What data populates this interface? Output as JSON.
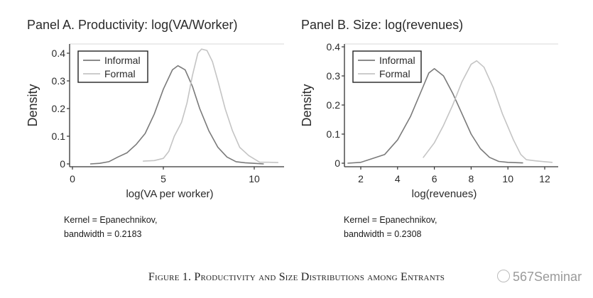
{
  "chart_data": [
    {
      "type": "line",
      "title": "Panel A. Productivity: log(VA/Worker)",
      "xlabel": "log(VA per worker)",
      "ylabel": "Density",
      "xlim": [
        -0.1,
        11.5
      ],
      "ylim": [
        0,
        0.4
      ],
      "xticks": [
        0,
        5,
        10
      ],
      "xtick_labels": [
        "0",
        "5",
        "10"
      ],
      "yticks": [
        0,
        0.1,
        0.2,
        0.3,
        0.4
      ],
      "ytick_labels": [
        "0",
        "0.1",
        "0.2",
        "0.3",
        "0.4"
      ],
      "legend": [
        "Informal",
        "Formal"
      ],
      "legend_position": "top-left",
      "grid": false,
      "note": [
        "Kernel = Epanechnikov,",
        "bandwidth = 0.2183"
      ],
      "series": [
        {
          "name": "Informal",
          "color": "#7a7a7a",
          "x": [
            1.0,
            1.5,
            2.0,
            2.5,
            3.0,
            3.5,
            4.0,
            4.5,
            5.0,
            5.5,
            5.8,
            6.2,
            6.6,
            7.0,
            7.5,
            8.0,
            8.5,
            9.0,
            9.5,
            10.0,
            10.5
          ],
          "y": [
            0.0,
            0.002,
            0.008,
            0.025,
            0.04,
            0.07,
            0.11,
            0.18,
            0.27,
            0.34,
            0.355,
            0.34,
            0.28,
            0.2,
            0.12,
            0.06,
            0.025,
            0.008,
            0.004,
            0.002,
            0.0
          ]
        },
        {
          "name": "Formal",
          "color": "#c4c4c4",
          "x": [
            3.9,
            4.5,
            5.0,
            5.3,
            5.6,
            6.0,
            6.3,
            6.6,
            6.9,
            7.1,
            7.4,
            7.7,
            8.0,
            8.4,
            8.8,
            9.2,
            9.7,
            10.3,
            10.8,
            11.3
          ],
          "y": [
            0.01,
            0.012,
            0.02,
            0.045,
            0.1,
            0.15,
            0.22,
            0.32,
            0.4,
            0.415,
            0.41,
            0.37,
            0.3,
            0.2,
            0.12,
            0.06,
            0.03,
            0.006,
            0.006,
            0.005
          ]
        }
      ]
    },
    {
      "type": "line",
      "title": "Panel B. Size: log(revenues)",
      "xlabel": "log(revenues)",
      "ylabel": "Density",
      "xlim": [
        1.1,
        12.7
      ],
      "ylim": [
        0,
        0.4
      ],
      "xticks": [
        2,
        4,
        6,
        8,
        10,
        12
      ],
      "xtick_labels": [
        "2",
        "4",
        "6",
        "8",
        "10",
        "12"
      ],
      "yticks": [
        0,
        0.1,
        0.2,
        0.3,
        0.4
      ],
      "ytick_labels": [
        "0",
        "0.1",
        "0.2",
        "0.3",
        "0.4"
      ],
      "legend": [
        "Informal",
        "Formal"
      ],
      "legend_position": "top-left",
      "grid": false,
      "note": [
        "Kernel = Epanechnikov,",
        "bandwidth = 0.2308"
      ],
      "series": [
        {
          "name": "Informal",
          "color": "#7a7a7a",
          "x": [
            1.3,
            2.0,
            2.6,
            3.3,
            4.0,
            4.7,
            5.3,
            5.7,
            6.0,
            6.5,
            7.0,
            7.5,
            8.0,
            8.5,
            9.0,
            9.5,
            10.0,
            10.8
          ],
          "y": [
            0.0,
            0.003,
            0.015,
            0.03,
            0.08,
            0.16,
            0.25,
            0.31,
            0.325,
            0.3,
            0.24,
            0.17,
            0.1,
            0.05,
            0.02,
            0.006,
            0.003,
            0.001
          ]
        },
        {
          "name": "Formal",
          "color": "#c4c4c4",
          "x": [
            5.4,
            6.0,
            6.5,
            7.0,
            7.5,
            8.0,
            8.3,
            8.7,
            9.2,
            9.7,
            10.3,
            10.7,
            11.0,
            11.5,
            12.0,
            12.4
          ],
          "y": [
            0.02,
            0.07,
            0.13,
            0.2,
            0.28,
            0.34,
            0.352,
            0.33,
            0.26,
            0.17,
            0.08,
            0.03,
            0.012,
            0.008,
            0.005,
            0.003
          ]
        }
      ]
    }
  ],
  "figure": {
    "caption": "Figure 1. Productivity and Size Distributions among Entrants",
    "watermark": "567Seminar"
  }
}
